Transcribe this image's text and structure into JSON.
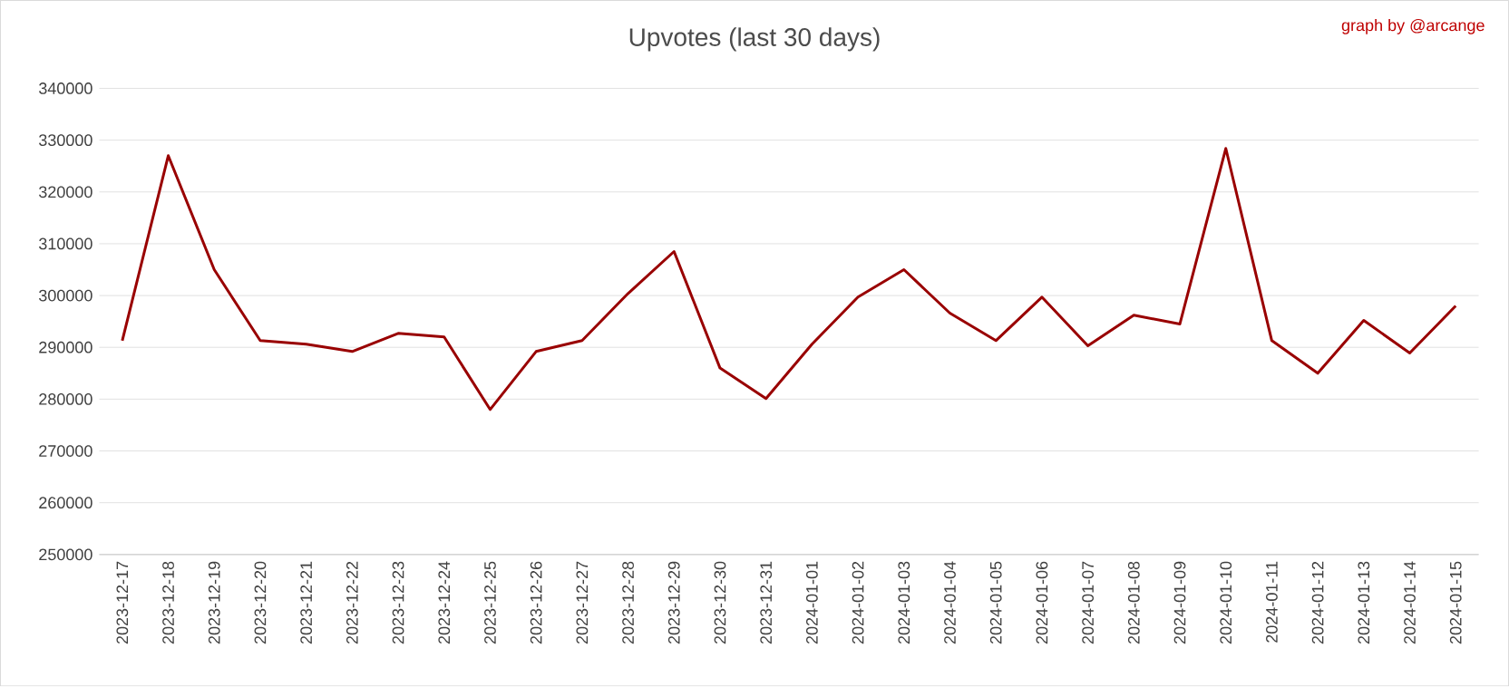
{
  "chart_data": {
    "type": "line",
    "title": "Upvotes (last 30 days)",
    "annotations": [
      "graph by @arcange"
    ],
    "categories": [
      "2023-12-17",
      "2023-12-18",
      "2023-12-19",
      "2023-12-20",
      "2023-12-21",
      "2023-12-22",
      "2023-12-23",
      "2023-12-24",
      "2023-12-25",
      "2023-12-26",
      "2023-12-27",
      "2023-12-28",
      "2023-12-29",
      "2023-12-30",
      "2023-12-31",
      "2024-01-01",
      "2024-01-02",
      "2024-01-03",
      "2024-01-04",
      "2024-01-05",
      "2024-01-06",
      "2024-01-07",
      "2024-01-08",
      "2024-01-09",
      "2024-01-10",
      "2024-01-11",
      "2024-01-12",
      "2024-01-13",
      "2024-01-14",
      "2024-01-15"
    ],
    "series": [
      {
        "color": "#990000",
        "values": [
          291300,
          327000,
          305000,
          291300,
          290600,
          289200,
          292700,
          292000,
          278000,
          289200,
          291300,
          300400,
          308500,
          286000,
          280100,
          290600,
          299700,
          305000,
          296600,
          291300,
          299700,
          290300,
          296200,
          294500,
          328400,
          291300,
          285000,
          295200,
          288900,
          298000
        ]
      }
    ],
    "ylim": [
      250000,
      340000
    ],
    "yticks": [
      250000,
      260000,
      270000,
      280000,
      290000,
      300000,
      310000,
      320000,
      330000,
      340000
    ],
    "grid": "y",
    "marker": "none",
    "line_style": "solid"
  }
}
